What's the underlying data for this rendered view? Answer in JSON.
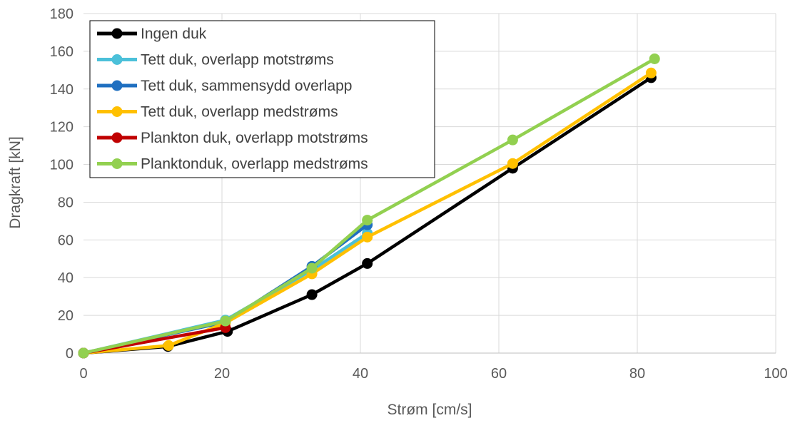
{
  "chart_data": {
    "type": "line",
    "title": "",
    "xlabel": "Strøm [cm/s]",
    "ylabel": "Dragkraft [kN]",
    "xlim": [
      0,
      100
    ],
    "ylim": [
      0,
      180
    ],
    "x_ticks": [
      0,
      20,
      40,
      60,
      80,
      100
    ],
    "y_ticks": [
      0,
      20,
      40,
      60,
      80,
      100,
      120,
      140,
      160,
      180
    ],
    "x_tick_labels": [
      "0",
      "20",
      "40",
      "60",
      "80",
      "100"
    ],
    "y_tick_labels": [
      "0",
      "20",
      "40",
      "60",
      "80",
      "100",
      "120",
      "140",
      "160",
      "180"
    ],
    "grid": true,
    "legend_position": "top-left",
    "series": [
      {
        "name": "Ingen duk",
        "color": "#000000",
        "x": [
          0,
          12.2,
          20.8,
          33,
          41,
          62,
          82
        ],
        "y": [
          0,
          3.5,
          11.5,
          31,
          47.5,
          98,
          146
        ]
      },
      {
        "name": "Tett duk, overlapp motstrøms",
        "color": "#4BC0D9",
        "x": [
          0,
          20.5,
          33,
          41
        ],
        "y": [
          0,
          17.5,
          44,
          63.5
        ]
      },
      {
        "name": "Tett duk, sammensydd overlapp",
        "color": "#1F6FC0",
        "x": [
          0,
          20.5,
          33,
          41
        ],
        "y": [
          0,
          16.5,
          46,
          68
        ]
      },
      {
        "name": "Tett duk, overlapp medstrøms",
        "color": "#FFC000",
        "x": [
          0,
          12.3,
          20.5,
          33,
          41,
          62,
          82
        ],
        "y": [
          0,
          4,
          16,
          42,
          61.5,
          100.5,
          148.5
        ]
      },
      {
        "name": "Plankton duk, overlapp motstrøms",
        "color": "#C00000",
        "x": [
          0,
          20.5
        ],
        "y": [
          0,
          13.5
        ]
      },
      {
        "name": "Planktonduk, overlapp medstrøms",
        "color": "#92D050",
        "x": [
          0,
          20.5,
          33,
          41,
          62,
          82.5
        ],
        "y": [
          0,
          17,
          45,
          70.5,
          113,
          156
        ]
      }
    ]
  }
}
